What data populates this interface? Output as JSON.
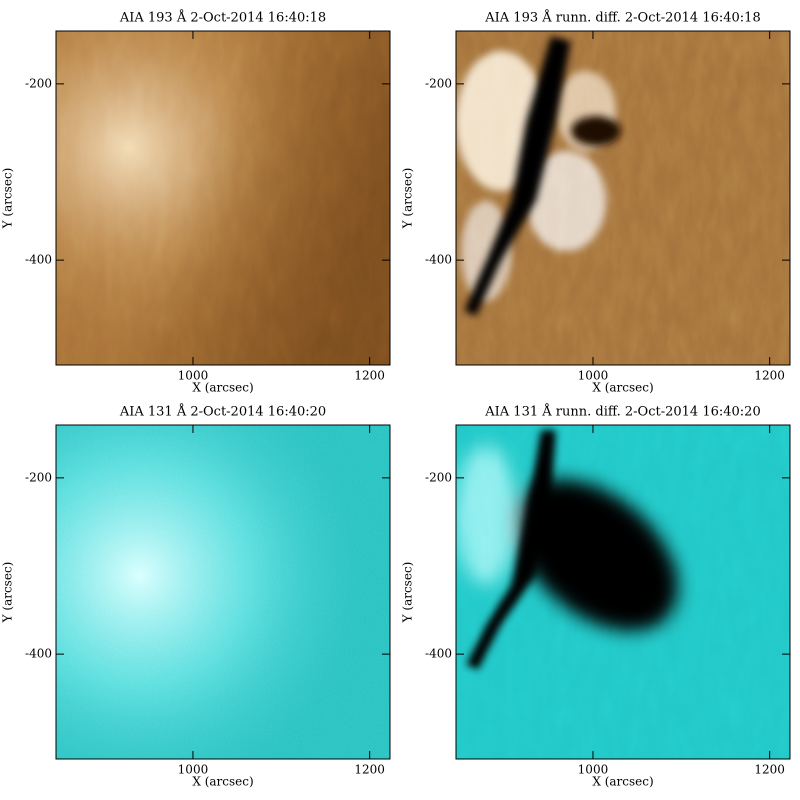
{
  "chart_data": [
    {
      "type": "image",
      "title": "AIA 193 Å  2-Oct-2014 16:40:18",
      "x_label": "X (arcsec)",
      "y_label": "Y (arcsec)",
      "xlim": [
        845,
        1223
      ],
      "ylim": [
        -519,
        -140
      ],
      "xticks": [
        1000,
        1200
      ],
      "yticks": [
        -400,
        -200
      ]
    },
    {
      "type": "image",
      "title": "AIA 193 Å runn. diff. 2-Oct-2014 16:40:18",
      "x_label": "X (arcsec)",
      "y_label": "Y (arcsec)",
      "xlim": [
        845,
        1223
      ],
      "ylim": [
        -519,
        -140
      ],
      "xticks": [
        1000,
        1200
      ],
      "yticks": [
        -400,
        -200
      ]
    },
    {
      "type": "image",
      "title": "AIA 131 Å  2-Oct-2014 16:40:20",
      "x_label": "X (arcsec)",
      "y_label": "Y (arcsec)",
      "xlim": [
        845,
        1223
      ],
      "ylim": [
        -519,
        -140
      ],
      "xticks": [
        1000,
        1200
      ],
      "yticks": [
        -400,
        -200
      ]
    },
    {
      "type": "image",
      "title": "AIA 131 Å runn. diff. 2-Oct-2014 16:40:20",
      "x_label": "X (arcsec)",
      "y_label": "Y (arcsec)",
      "xlim": [
        845,
        1223
      ],
      "ylim": [
        -519,
        -140
      ],
      "xticks": [
        1000,
        1200
      ],
      "yticks": [
        -400,
        -200
      ]
    }
  ]
}
